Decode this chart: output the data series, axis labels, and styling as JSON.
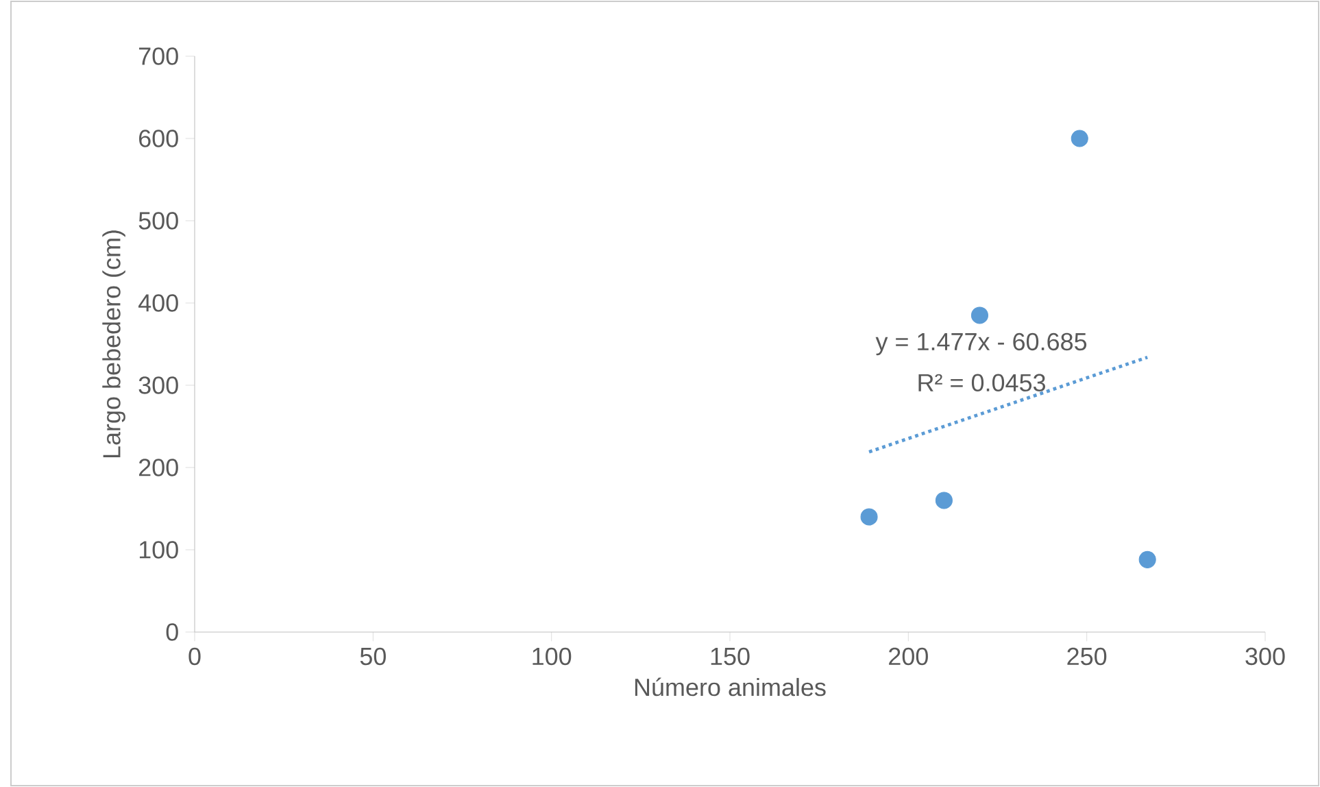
{
  "chart_data": {
    "type": "scatter",
    "xlabel": "Número animales",
    "ylabel": "Largo bebedero (cm)",
    "xlim": [
      0,
      300
    ],
    "xticks": [
      0,
      50,
      100,
      150,
      200,
      250,
      300
    ],
    "ylim": [
      0,
      700
    ],
    "yticks": [
      0,
      100,
      200,
      300,
      400,
      500,
      600,
      700
    ],
    "grid": false,
    "annotations": [
      "y = 1.477x - 60.685",
      "R² = 0.0453"
    ],
    "series": [
      {
        "marker": "circle",
        "color": "#5b9bd5",
        "x": [
          189,
          210,
          220,
          248,
          267
        ],
        "values": [
          140,
          160,
          385,
          600,
          88
        ]
      },
      {
        "type": "line",
        "line_style": "dotted",
        "marker": "none",
        "color": "#5b9bd5",
        "x": [
          189,
          267
        ],
        "values": [
          219,
          334
        ]
      }
    ]
  }
}
